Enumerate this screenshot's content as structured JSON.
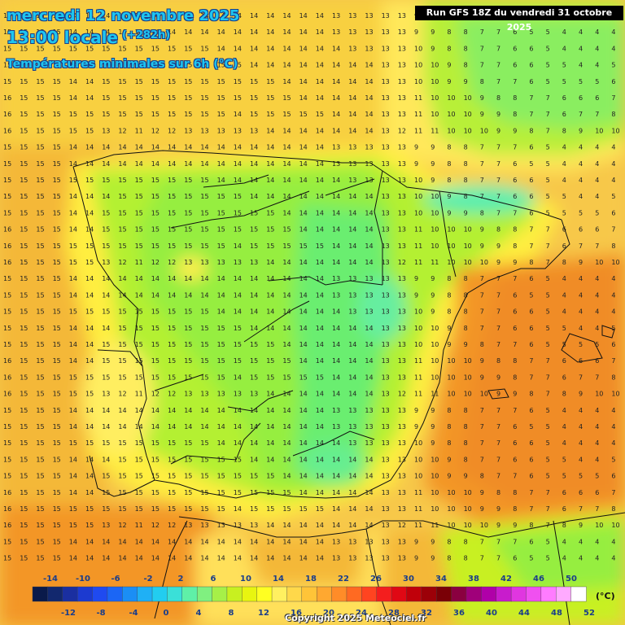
{
  "header": {
    "date": "mercredi 12 novembre 2025",
    "time": "13:00 locale",
    "lead": "(+282h)",
    "description": "Températures minimales sur 6h (°C)",
    "run": "Run GFS 18Z du vendredi 31 octobre 2025"
  },
  "footer": {
    "copyright": "Copyright 2025 Meteociel.fr"
  },
  "legend": {
    "unit": "(°C)",
    "top_labels": [
      "-14",
      "-10",
      "-6",
      "-2",
      "2",
      "6",
      "10",
      "14",
      "18",
      "22",
      "26",
      "30",
      "34",
      "38",
      "42",
      "46",
      "50"
    ],
    "bottom_labels": [
      "-12",
      "-8",
      "-4",
      "0",
      "4",
      "8",
      "12",
      "16",
      "20",
      "24",
      "28",
      "32",
      "36",
      "40",
      "44",
      "48",
      "52"
    ],
    "colors": [
      "#0a1a4a",
      "#12286e",
      "#1a2fa0",
      "#1c3ad0",
      "#1f4af0",
      "#1b66f5",
      "#1b8ef5",
      "#1fb0f5",
      "#22cdf0",
      "#3ae0d8",
      "#5ff0a8",
      "#80f080",
      "#a6f048",
      "#c8f020",
      "#e8f510",
      "#ffff22",
      "#fff060",
      "#ffd84a",
      "#ffc438",
      "#ffa830",
      "#ff8c28",
      "#ff6a22",
      "#ff4420",
      "#f41e1e",
      "#e00814",
      "#c0000a",
      "#9c0008",
      "#7a0006",
      "#8a0040",
      "#a0007a",
      "#b000a8",
      "#c81ccc",
      "#e036e0",
      "#f050f0",
      "#ff7cff",
      "#ffaaff",
      "#ffffff"
    ]
  },
  "map_values": {
    "description": "Grid of minimum temperature values shown across the map (rows top to bottom)",
    "rows": [
      "15 15 15 15 14 14 14 14 14 14 14 14 14 14 14 14 14 14 14 14 13 13 13 13 13 9 9 8 8 7 7 7 6 5 4 4 4 4",
      "15 15 15 15 14 14 14 14 14 14 14 14 14 14 14 14 14 14 14 14 13 13 13 13 13 9 9 8 8 7 7 6 5 5 4 4 4 4",
      "15 15 15 15 15 15 15 15 15 15 15 15 15 14 14 14 14 14 14 14 14 13 13 13 13 10 9 8 8 7 7 6 6 5 4 4 4 4",
      "15 15 15 15 14 14 14 15 15 15 15 15 15 15 15 14 14 14 14 14 14 14 14 13 13 10 10 9 8 7 7 6 6 5 5 4 4 5",
      "15 15 15 15 14 14 15 15 15 15 15 15 15 15 15 15 15 14 14 14 14 14 14 13 13 10 10 9 9 8 7 7 6 5 5 5 5 6",
      "16 15 15 15 14 14 15 15 15 15 15 15 15 15 15 15 15 15 14 14 14 14 14 13 13 11 10 10 10 9 8 8 7 7 6 6 6 7",
      "16 15 15 15 15 15 15 15 15 15 15 15 15 15 14 15 15 15 15 15 14 14 14 13 13 11 10 10 10 9 9 8 7 7 6 7 7 8",
      "16 15 15 15 15 15 13 12 11 12 12 13 13 13 13 13 14 14 14 14 14 14 14 13 12 11 11 10 10 10 9 9 8 7 8 9 10 10"
    ]
  }
}
